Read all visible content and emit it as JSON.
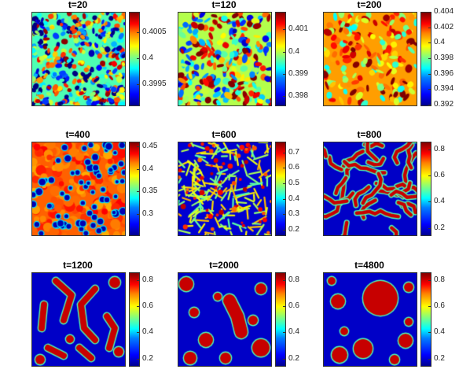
{
  "chart_data": [
    {
      "type": "heatmap",
      "title": "t=20",
      "colorbar_ticks": [
        "0.4005",
        "0.4",
        "0.3995"
      ],
      "tick_values": [
        0.4005,
        0.4,
        0.3995
      ],
      "clim": [
        0.3991,
        0.4009
      ],
      "pattern": "fine-noise"
    },
    {
      "type": "heatmap",
      "title": "t=120",
      "colorbar_ticks": [
        "0.401",
        "0.4",
        "0.399",
        "0.398"
      ],
      "tick_values": [
        0.401,
        0.4,
        0.399,
        0.398
      ],
      "clim": [
        0.3976,
        0.4018
      ],
      "pattern": "noise"
    },
    {
      "type": "heatmap",
      "title": "t=200",
      "colorbar_ticks": [
        "0.404",
        "0.402",
        "0.4",
        "0.398",
        "0.396",
        "0.394",
        "0.392"
      ],
      "tick_values": [
        0.404,
        0.402,
        0.4,
        0.398,
        0.396,
        0.394,
        0.392
      ],
      "clim": [
        0.392,
        0.404
      ],
      "pattern": "noise-red"
    },
    {
      "type": "heatmap",
      "title": "t=400",
      "colorbar_ticks": [
        "0.45",
        "0.4",
        "0.35",
        "0.3"
      ],
      "tick_values": [
        0.45,
        0.4,
        0.35,
        0.3
      ],
      "clim": [
        0.255,
        0.46
      ],
      "pattern": "small-holes"
    },
    {
      "type": "heatmap",
      "title": "t=600",
      "colorbar_ticks": [
        "0.7",
        "0.6",
        "0.5",
        "0.4",
        "0.3",
        "0.2"
      ],
      "tick_values": [
        0.7,
        0.6,
        0.5,
        0.4,
        0.3,
        0.2
      ],
      "clim": [
        0.17,
        0.77
      ],
      "pattern": "network"
    },
    {
      "type": "heatmap",
      "title": "t=800",
      "colorbar_ticks": [
        "0.8",
        "0.6",
        "0.4",
        "0.2"
      ],
      "tick_values": [
        0.8,
        0.6,
        0.4,
        0.2
      ],
      "clim": [
        0.15,
        0.86
      ],
      "pattern": "worms"
    },
    {
      "type": "heatmap",
      "title": "t=1200",
      "colorbar_ticks": [
        "0.8",
        "0.6",
        "0.4",
        "0.2"
      ],
      "tick_values": [
        0.8,
        0.6,
        0.4,
        0.2
      ],
      "clim": [
        0.15,
        0.86
      ],
      "pattern": "blobs"
    },
    {
      "type": "heatmap",
      "title": "t=2000",
      "colorbar_ticks": [
        "0.8",
        "0.6",
        "0.4",
        "0.2"
      ],
      "tick_values": [
        0.8,
        0.6,
        0.4,
        0.2
      ],
      "clim": [
        0.15,
        0.86
      ],
      "pattern": "drops"
    },
    {
      "type": "heatmap",
      "title": "t=4800",
      "colorbar_ticks": [
        "0.8",
        "0.6",
        "0.4",
        "0.2"
      ],
      "tick_values": [
        0.8,
        0.6,
        0.4,
        0.2
      ],
      "clim": [
        0.15,
        0.86
      ],
      "pattern": "coarse-drops"
    }
  ]
}
